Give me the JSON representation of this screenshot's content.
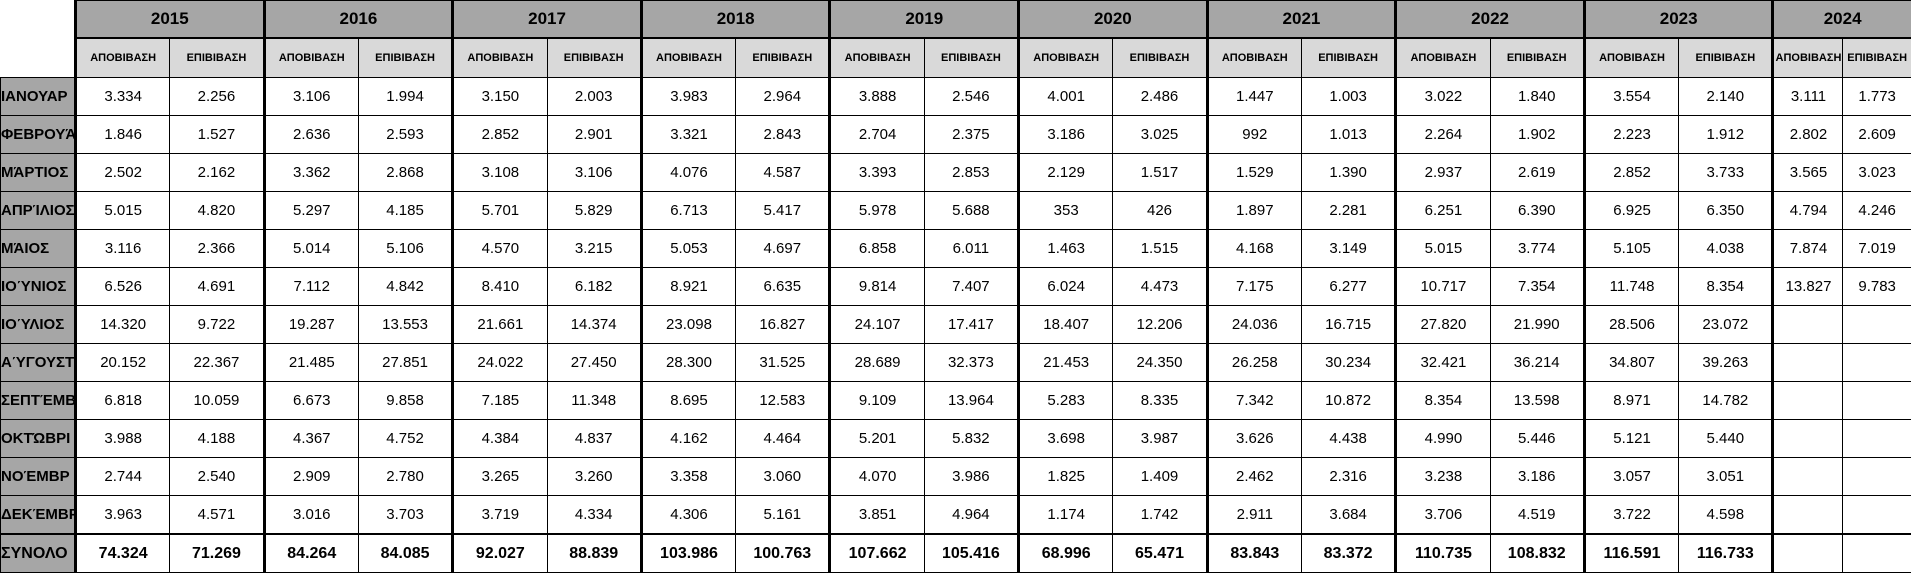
{
  "table": {
    "years": [
      "2015",
      "2016",
      "2017",
      "2018",
      "2019",
      "2020",
      "2021",
      "2022",
      "2023",
      "2024"
    ],
    "subheaders": [
      "ΑΠΟΒΙΒΑΣΗ",
      "ΕΠΙΒΙΒΑΣΗ"
    ],
    "rows": [
      {
        "label": "ΙΑΝΟΥΑΡ",
        "cells": [
          "3.334",
          "2.256",
          "3.106",
          "1.994",
          "3.150",
          "2.003",
          "3.983",
          "2.964",
          "3.888",
          "2.546",
          "4.001",
          "2.486",
          "1.447",
          "1.003",
          "3.022",
          "1.840",
          "3.554",
          "2.140",
          "3.111",
          "1.773"
        ]
      },
      {
        "label": "ΦΕΒΡΟΥΆ",
        "cells": [
          "1.846",
          "1.527",
          "2.636",
          "2.593",
          "2.852",
          "2.901",
          "3.321",
          "2.843",
          "2.704",
          "2.375",
          "3.186",
          "3.025",
          "992",
          "1.013",
          "2.264",
          "1.902",
          "2.223",
          "1.912",
          "2.802",
          "2.609"
        ]
      },
      {
        "label": "ΜΆΡΤΙΟΣ",
        "cells": [
          "2.502",
          "2.162",
          "3.362",
          "2.868",
          "3.108",
          "3.106",
          "4.076",
          "4.587",
          "3.393",
          "2.853",
          "2.129",
          "1.517",
          "1.529",
          "1.390",
          "2.937",
          "2.619",
          "2.852",
          "3.733",
          "3.565",
          "3.023"
        ]
      },
      {
        "label": "ΑΠΡΊΛΙΟΣ",
        "cells": [
          "5.015",
          "4.820",
          "5.297",
          "4.185",
          "5.701",
          "5.829",
          "6.713",
          "5.417",
          "5.978",
          "5.688",
          "353",
          "426",
          "1.897",
          "2.281",
          "6.251",
          "6.390",
          "6.925",
          "6.350",
          "4.794",
          "4.246"
        ]
      },
      {
        "label": "ΜΆΙΟΣ",
        "cells": [
          "3.116",
          "2.366",
          "5.014",
          "5.106",
          "4.570",
          "3.215",
          "5.053",
          "4.697",
          "6.858",
          "6.011",
          "1.463",
          "1.515",
          "4.168",
          "3.149",
          "5.015",
          "3.774",
          "5.105",
          "4.038",
          "7.874",
          "7.019"
        ]
      },
      {
        "label": "ΙΟΎΝΙΟΣ",
        "cells": [
          "6.526",
          "4.691",
          "7.112",
          "4.842",
          "8.410",
          "6.182",
          "8.921",
          "6.635",
          "9.814",
          "7.407",
          "6.024",
          "4.473",
          "7.175",
          "6.277",
          "10.717",
          "7.354",
          "11.748",
          "8.354",
          "13.827",
          "9.783"
        ]
      },
      {
        "label": "ΙΟΎΛΙΟΣ",
        "cells": [
          "14.320",
          "9.722",
          "19.287",
          "13.553",
          "21.661",
          "14.374",
          "23.098",
          "16.827",
          "24.107",
          "17.417",
          "18.407",
          "12.206",
          "24.036",
          "16.715",
          "27.820",
          "21.990",
          "28.506",
          "23.072"
        ]
      },
      {
        "label": "ΑΎΓΟΥΣΤ",
        "cells": [
          "20.152",
          "22.367",
          "21.485",
          "27.851",
          "24.022",
          "27.450",
          "28.300",
          "31.525",
          "28.689",
          "32.373",
          "21.453",
          "24.350",
          "26.258",
          "30.234",
          "32.421",
          "36.214",
          "34.807",
          "39.263"
        ]
      },
      {
        "label": "ΣΕΠΤΈΜΒ",
        "cells": [
          "6.818",
          "10.059",
          "6.673",
          "9.858",
          "7.185",
          "11.348",
          "8.695",
          "12.583",
          "9.109",
          "13.964",
          "5.283",
          "8.335",
          "7.342",
          "10.872",
          "8.354",
          "13.598",
          "8.971",
          "14.782"
        ]
      },
      {
        "label": "ΟΚΤΏΒΡΙ",
        "cells": [
          "3.988",
          "4.188",
          "4.367",
          "4.752",
          "4.384",
          "4.837",
          "4.162",
          "4.464",
          "5.201",
          "5.832",
          "3.698",
          "3.987",
          "3.626",
          "4.438",
          "4.990",
          "5.446",
          "5.121",
          "5.440"
        ]
      },
      {
        "label": "ΝΟΈΜΒΡ",
        "cells": [
          "2.744",
          "2.540",
          "2.909",
          "2.780",
          "3.265",
          "3.260",
          "3.358",
          "3.060",
          "4.070",
          "3.986",
          "1.825",
          "1.409",
          "2.462",
          "2.316",
          "3.238",
          "3.186",
          "3.057",
          "3.051"
        ]
      },
      {
        "label": "ΔΕΚΈΜΒΡ",
        "cells": [
          "3.963",
          "4.571",
          "3.016",
          "3.703",
          "3.719",
          "4.334",
          "4.306",
          "5.161",
          "3.851",
          "4.964",
          "1.174",
          "1.742",
          "2.911",
          "3.684",
          "3.706",
          "4.519",
          "3.722",
          "4.598"
        ]
      },
      {
        "label": "ΣΥΝΟΛΟ",
        "cells": [
          "74.324",
          "71.269",
          "84.264",
          "84.085",
          "92.027",
          "88.839",
          "103.986",
          "100.763",
          "107.662",
          "105.416",
          "68.996",
          "65.471",
          "83.843",
          "83.372",
          "110.735",
          "108.832",
          "116.591",
          "116.733"
        ]
      }
    ]
  }
}
